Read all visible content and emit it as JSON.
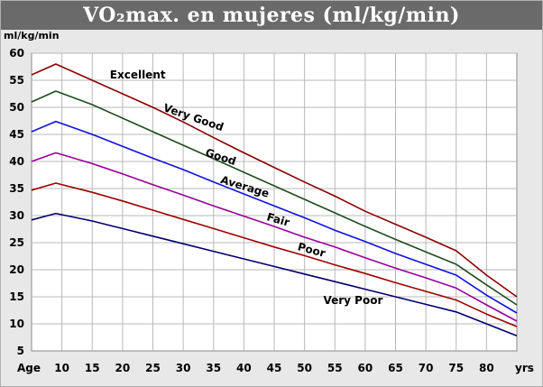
{
  "chart_data": {
    "type": "line",
    "title": "VO₂max. en mujeres (ml/kg/min)",
    "ylabel": "ml/kg/min",
    "x_first_label": "Age",
    "x_last_label": "yrs",
    "xlim": [
      5,
      85
    ],
    "ylim": [
      5,
      60
    ],
    "x_ticks": [
      10,
      15,
      20,
      25,
      30,
      35,
      40,
      45,
      50,
      55,
      60,
      65,
      70,
      75,
      80
    ],
    "y_ticks": [
      5,
      10,
      15,
      20,
      25,
      30,
      35,
      40,
      45,
      50,
      55,
      60
    ],
    "grid": true,
    "x": [
      5,
      9,
      15,
      20,
      25,
      30,
      35,
      40,
      45,
      50,
      55,
      60,
      65,
      70,
      75,
      80,
      85
    ],
    "series": [
      {
        "name": "Excellent",
        "color": "#8b0000",
        "values": [
          56,
          58,
          55,
          52.5,
          50,
          47.3,
          44.4,
          41.6,
          38.9,
          36.2,
          33.6,
          30.8,
          28.4,
          26,
          23.5,
          19,
          15
        ]
      },
      {
        "name": "Very Good",
        "color": "#1d4d1d",
        "values": [
          51,
          53,
          50.5,
          48,
          45.5,
          43,
          40.5,
          38,
          35.5,
          33,
          30.5,
          28,
          25.6,
          23.3,
          21,
          17.2,
          13.5
        ]
      },
      {
        "name": "Good",
        "color": "#1010e0",
        "values": [
          45.5,
          47.4,
          45,
          42.8,
          40.6,
          38.5,
          36.2,
          34,
          31.8,
          29.6,
          27.3,
          25.2,
          23,
          21,
          19,
          15.3,
          12
        ]
      },
      {
        "name": "Average",
        "color": "#990099",
        "values": [
          40,
          41.6,
          39.6,
          37.7,
          35.7,
          33.8,
          31.8,
          29.9,
          28,
          26,
          24.2,
          22.2,
          20.3,
          18.5,
          16.6,
          13.5,
          10.5
        ]
      },
      {
        "name": "Fair",
        "color": "#a00000",
        "values": [
          34.7,
          36,
          34.3,
          32.7,
          31,
          29.3,
          27.6,
          25.9,
          24.2,
          22.6,
          20.9,
          19.3,
          17.6,
          16,
          14.4,
          11.8,
          9.5
        ]
      },
      {
        "name": "Poor",
        "color": "#000070",
        "values": [
          29.2,
          30.4,
          29,
          27.6,
          26.2,
          24.8,
          23.4,
          22,
          20.6,
          19.2,
          17.8,
          16.4,
          15,
          13.6,
          12.2,
          10,
          7.8
        ]
      }
    ],
    "annotations": [
      {
        "text": "Excellent",
        "x": 22.5,
        "y": 55.3,
        "angle": 0
      },
      {
        "text": "Very Good",
        "x": 31.5,
        "y": 47.5,
        "angle": 19
      },
      {
        "text": "Good",
        "x": 36,
        "y": 40.2,
        "angle": 18
      },
      {
        "text": "Average",
        "x": 40,
        "y": 34.7,
        "angle": 17
      },
      {
        "text": "Fair",
        "x": 45.5,
        "y": 28.6,
        "angle": 16
      },
      {
        "text": "Poor",
        "x": 51,
        "y": 23,
        "angle": 15
      },
      {
        "text": "Very Poor",
        "x": 58,
        "y": 13.7,
        "angle": 0
      }
    ]
  }
}
